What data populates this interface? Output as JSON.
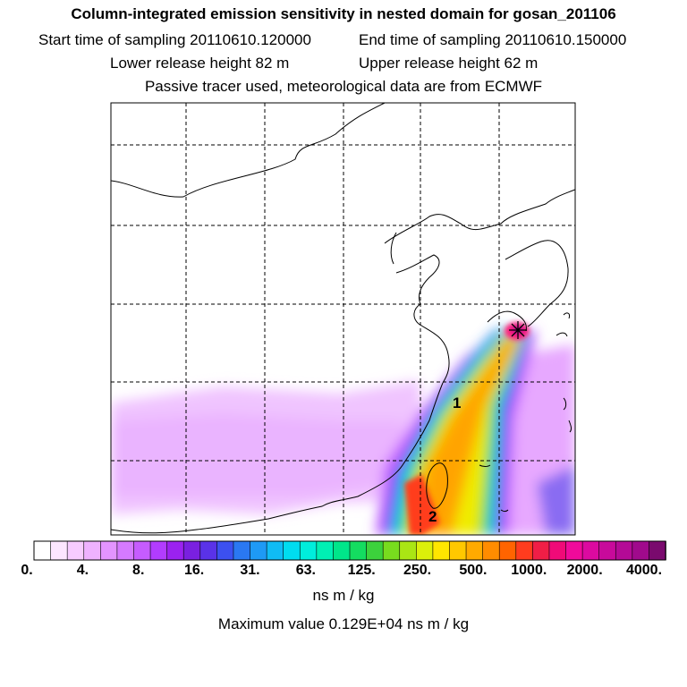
{
  "header": {
    "title": "Column-integrated emission sensitivity in nested domain for gosan_201106",
    "start_label": "Start time of sampling 20110610.120000",
    "end_label": "End time of sampling 20110610.150000",
    "lower_label": "Lower release height   82 m",
    "upper_label": "Upper release height   62 m",
    "note": "Passive tracer used, meteorological data are from ECMWF"
  },
  "map": {
    "markers": [
      "1",
      "2"
    ],
    "release_site_icon": "star-icon"
  },
  "colorbar": {
    "tick_labels": [
      "0.",
      "4.",
      "8.",
      "16.",
      "31.",
      "63.",
      "125.",
      "250.",
      "500.",
      "1000.",
      "2000.",
      "4000."
    ],
    "colors": [
      "#ffffff",
      "#fde6ff",
      "#f7ccff",
      "#efb2ff",
      "#e394ff",
      "#d57aff",
      "#c65cff",
      "#b23cff",
      "#9b22f0",
      "#7a20e0",
      "#5a32e8",
      "#3c50f0",
      "#2a78f2",
      "#1e9af5",
      "#10bcf5",
      "#00dcf0",
      "#00eedc",
      "#00f0b4",
      "#00e68a",
      "#14dc60",
      "#3cd23c",
      "#78dc1e",
      "#aae614",
      "#dcf00a",
      "#ffe600",
      "#ffc800",
      "#ffaa00",
      "#ff8c00",
      "#ff6400",
      "#ff3c1e",
      "#f01e46",
      "#f00a78",
      "#f00a9b",
      "#dc0aa0",
      "#c80a9b",
      "#b40a96",
      "#a00a8c",
      "#7a0a6e"
    ],
    "units": "ns m / kg",
    "max_value": "Maximum value  0.129E+04 ns m / kg"
  }
}
